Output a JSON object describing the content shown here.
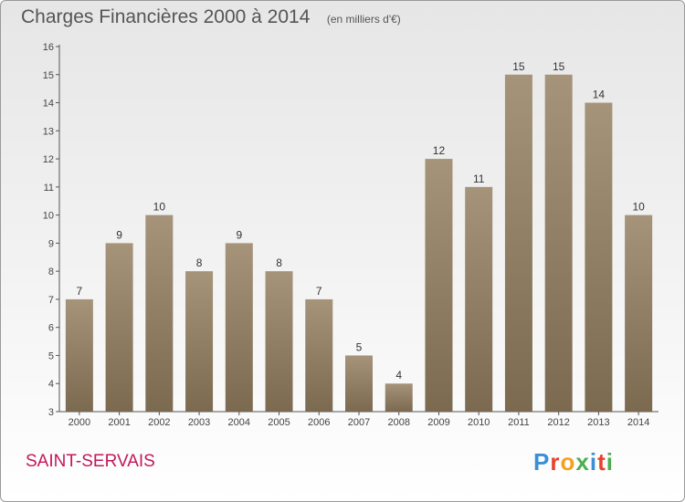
{
  "title": "Charges Financières 2000 à 2014",
  "unit_note": "(en milliers d'€)",
  "commune": "SAINT-SERVAIS",
  "logo": {
    "text": "Proxiti"
  },
  "colors": {
    "bar_top": "#a6947a",
    "bar_bottom": "#7b6a4f",
    "commune": "#c2185b",
    "title": "#555555"
  },
  "chart_data": {
    "type": "bar",
    "title": "Charges Financières 2000 à 2014",
    "subtitle": "(en milliers d'€)",
    "categories": [
      "2000",
      "2001",
      "2002",
      "2003",
      "2004",
      "2005",
      "2006",
      "2007",
      "2008",
      "2009",
      "2010",
      "2011",
      "2012",
      "2013",
      "2014"
    ],
    "values": [
      7,
      9,
      10,
      8,
      9,
      8,
      7,
      5,
      4,
      12,
      11,
      15,
      15,
      14,
      10
    ],
    "ylim": [
      3,
      16
    ],
    "yticks": [
      3,
      4,
      5,
      6,
      7,
      8,
      9,
      10,
      11,
      12,
      13,
      14,
      15,
      16
    ],
    "grid": false,
    "legend": "none"
  }
}
